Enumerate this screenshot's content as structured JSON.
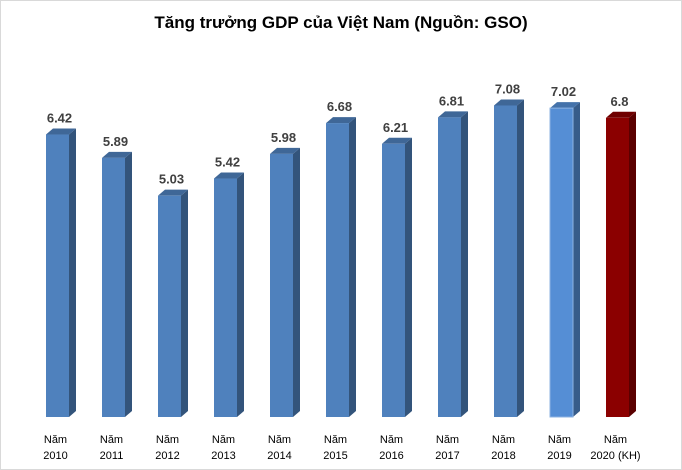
{
  "chart_data": {
    "type": "bar",
    "style": "3d-column",
    "title": "Tăng trưởng GDP của Việt Nam (Nguồn: GSO)",
    "xlabel": "",
    "ylabel": "",
    "ylim": [
      0,
      9.5
    ],
    "grid": false,
    "legend": "none",
    "categories": [
      [
        "Năm",
        "2010"
      ],
      [
        "Năm",
        "2011"
      ],
      [
        "Năm",
        "2012"
      ],
      [
        "Năm",
        "2013"
      ],
      [
        "Năm",
        "2014"
      ],
      [
        "Năm",
        "2015"
      ],
      [
        "Năm",
        "2016"
      ],
      [
        "Năm",
        "2017"
      ],
      [
        "Năm",
        "2018"
      ],
      [
        "Năm",
        "2019"
      ],
      [
        "Năm",
        "2020 (KH)"
      ]
    ],
    "values": [
      6.42,
      5.89,
      5.03,
      5.42,
      5.98,
      6.68,
      6.21,
      6.81,
      7.08,
      7.02,
      6.8
    ],
    "data_labels": [
      "6.42",
      "5.89",
      "5.03",
      "5.42",
      "5.98",
      "6.68",
      "6.21",
      "6.81",
      "7.08",
      "7.02",
      "6.8"
    ],
    "colors": [
      "#4f81bd",
      "#4f81bd",
      "#4f81bd",
      "#4f81bd",
      "#4f81bd",
      "#4f81bd",
      "#4f81bd",
      "#4f81bd",
      "#4f81bd",
      "#558ed5",
      "#8b0000"
    ]
  }
}
